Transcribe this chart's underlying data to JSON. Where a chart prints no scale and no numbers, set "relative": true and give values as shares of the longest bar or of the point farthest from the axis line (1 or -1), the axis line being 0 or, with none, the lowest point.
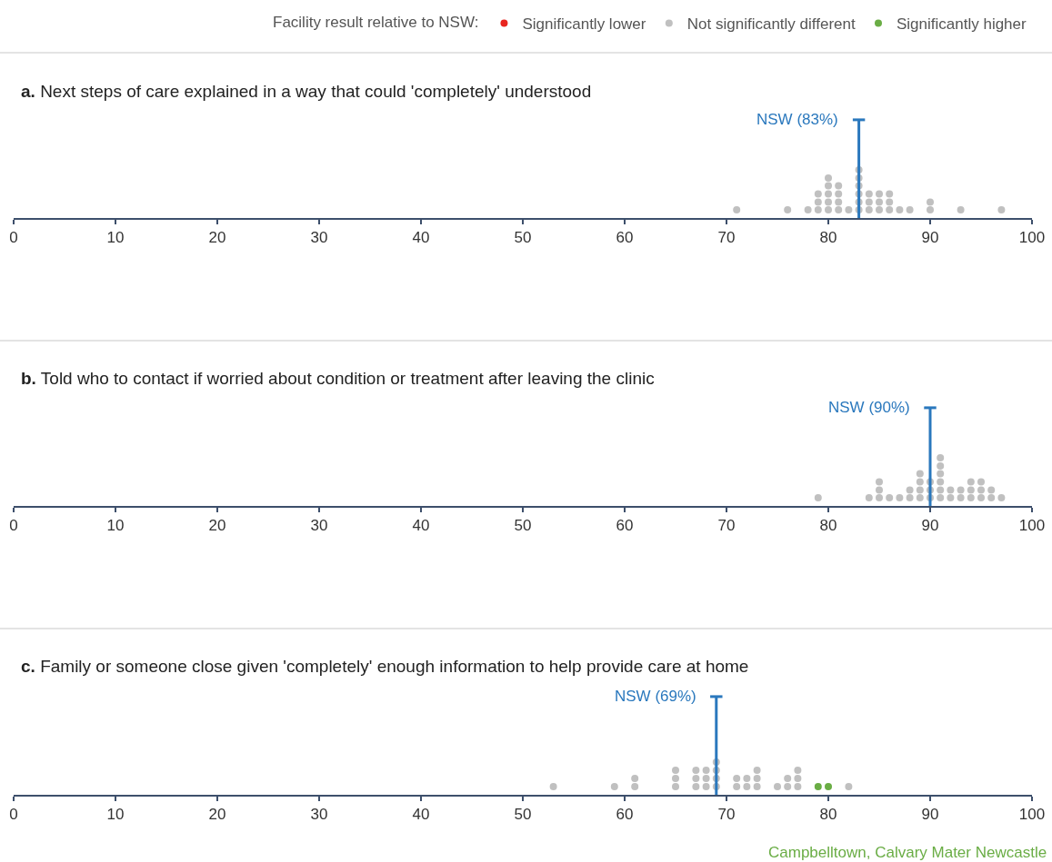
{
  "chart_data": [
    {
      "type": "scatter",
      "title": "a. Next steps of care explained in a way that could 'completely' understood",
      "legend_title": "Facility result relative to NSW:",
      "legend": "top",
      "marker": "circle",
      "relative": true,
      "tick_labels": "x",
      "xlim": [
        0,
        100
      ],
      "xticks": [
        0,
        10,
        20,
        30,
        40,
        50,
        60,
        70,
        80,
        90,
        100
      ],
      "series": [
        {
          "name": "Significantly lower",
          "color": "#e8251f"
        },
        {
          "name": "Not significantly different",
          "color": "#c0c0c0",
          "x": [
            71,
            76,
            78,
            79,
            79,
            79,
            80,
            80,
            80,
            80,
            80,
            81,
            81,
            81,
            81,
            82,
            83,
            83,
            83,
            83,
            83,
            83,
            84,
            84,
            84,
            85,
            85,
            85,
            86,
            86,
            86,
            87,
            88,
            90,
            90,
            93,
            97
          ],
          "values": [
            0.17,
            0.17,
            0.17,
            0.17,
            0.33,
            0.5,
            0.17,
            0.33,
            0.5,
            0.67,
            0.83,
            0.17,
            0.33,
            0.5,
            0.67,
            0.17,
            0.17,
            0.33,
            0.5,
            0.67,
            0.83,
            1,
            0.17,
            0.33,
            0.5,
            0.17,
            0.33,
            0.5,
            0.17,
            0.33,
            0.5,
            0.17,
            0.17,
            0.17,
            0.33,
            0.17,
            0.17
          ]
        },
        {
          "name": "Significantly higher",
          "color": "#6aad45"
        }
      ],
      "ref_lines": [
        {
          "axis": "x",
          "value": 83,
          "label": "NSW (83%)",
          "color": "#2a78bd"
        }
      ]
    },
    {
      "type": "scatter",
      "title": "b. Told who to contact if worried about condition or treatment after leaving the clinic",
      "marker": "circle",
      "relative": true,
      "tick_labels": "x",
      "xlim": [
        0,
        100
      ],
      "xticks": [
        0,
        10,
        20,
        30,
        40,
        50,
        60,
        70,
        80,
        90,
        100
      ],
      "series": [
        {
          "color": "#c0c0c0",
          "x": [
            79,
            84,
            85,
            85,
            85,
            86,
            87,
            88,
            88,
            89,
            89,
            89,
            89,
            90,
            90,
            90,
            91,
            91,
            91,
            91,
            91,
            91,
            92,
            92,
            93,
            93,
            94,
            94,
            94,
            95,
            95,
            95,
            96,
            96,
            97
          ],
          "values": [
            0.17,
            0.17,
            0.17,
            0.33,
            0.5,
            0.17,
            0.17,
            0.17,
            0.33,
            0.17,
            0.33,
            0.5,
            0.67,
            0.17,
            0.33,
            0.5,
            0.17,
            0.33,
            0.5,
            0.67,
            0.83,
            1,
            0.17,
            0.33,
            0.17,
            0.33,
            0.17,
            0.33,
            0.5,
            0.17,
            0.33,
            0.5,
            0.17,
            0.33,
            0.17
          ]
        }
      ],
      "ref_lines": [
        {
          "axis": "x",
          "value": 90,
          "label": "NSW (90%)",
          "color": "#2a78bd"
        }
      ]
    },
    {
      "type": "scatter",
      "title": "c. Family or someone close given 'completely' enough information to help provide care at home",
      "marker": "circle",
      "relative": true,
      "tick_labels": "x",
      "xlim": [
        0,
        100
      ],
      "xticks": [
        0,
        10,
        20,
        30,
        40,
        50,
        60,
        70,
        80,
        90,
        100
      ],
      "series": [
        {
          "color": "#c0c0c0",
          "x": [
            53,
            59,
            61,
            61,
            65,
            65,
            65,
            67,
            67,
            67,
            68,
            68,
            68,
            69,
            69,
            69,
            69,
            71,
            71,
            72,
            72,
            73,
            73,
            73,
            75,
            76,
            76,
            77,
            77,
            77,
            82
          ],
          "values": [
            0.25,
            0.25,
            0.25,
            0.5,
            0.25,
            0.5,
            0.75,
            0.25,
            0.5,
            0.75,
            0.25,
            0.5,
            0.75,
            0.25,
            0.5,
            0.75,
            1,
            0.25,
            0.5,
            0.25,
            0.5,
            0.25,
            0.5,
            0.75,
            0.25,
            0.25,
            0.5,
            0.25,
            0.5,
            0.75,
            0.25
          ]
        },
        {
          "color": "#6aad45",
          "x": [
            79,
            80
          ],
          "values": [
            0.25,
            0.25
          ]
        }
      ],
      "ref_lines": [
        {
          "axis": "x",
          "value": 69,
          "label": "NSW (69%)",
          "color": "#2a78bd"
        }
      ],
      "annotations": [
        "Campbelltown, Calvary Mater Newcastle"
      ]
    }
  ]
}
